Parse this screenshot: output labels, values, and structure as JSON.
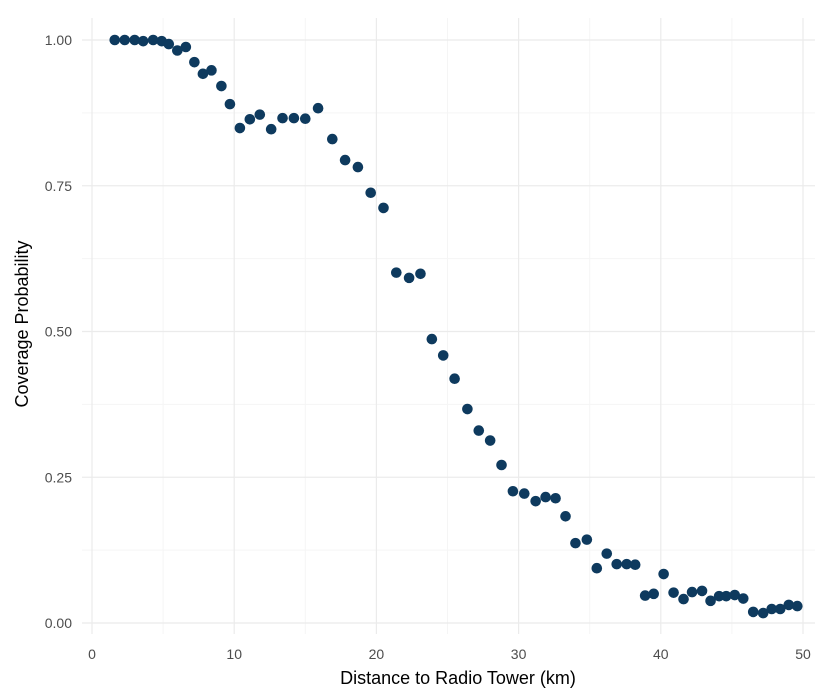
{
  "chart_data": {
    "type": "scatter",
    "title": "",
    "xlabel": "Distance to Radio Tower (km)",
    "ylabel": "Coverage Probability",
    "xlim": [
      0,
      50
    ],
    "ylim": [
      0,
      1
    ],
    "grid": true,
    "point_color": "#0e3a5e",
    "grid_major_color": "#ebebeb",
    "grid_minor_color": "#f5f5f5",
    "x_ticks": [
      0,
      10,
      20,
      30,
      40,
      50
    ],
    "x_tick_labels": [
      "0",
      "10",
      "20",
      "30",
      "40",
      "50"
    ],
    "y_ticks": [
      0,
      0.25,
      0.5,
      0.75,
      1
    ],
    "y_tick_labels": [
      "0.00",
      "0.25",
      "0.50",
      "0.75",
      "1.00"
    ],
    "series": [
      {
        "x": [
          1.6,
          2.3,
          3.0,
          3.6,
          4.3,
          4.9,
          5.4,
          6.0,
          6.6,
          7.2,
          7.8,
          8.4,
          9.1,
          9.7,
          10.4,
          11.1,
          11.8,
          12.6,
          13.4,
          14.2,
          15.0,
          15.9,
          16.9,
          17.8,
          18.7,
          19.6,
          20.5,
          21.4,
          22.3,
          23.1,
          23.9,
          24.7,
          25.5,
          26.4,
          27.2,
          28.0,
          28.8,
          29.6,
          30.4,
          31.2,
          31.9,
          32.6,
          33.3,
          34.0,
          34.8,
          35.5,
          36.2,
          36.9,
          37.6,
          38.2,
          38.9,
          39.5,
          40.2,
          40.9,
          41.6,
          42.2,
          42.9,
          43.5,
          44.1,
          44.6,
          45.2,
          45.8,
          46.5,
          47.2,
          47.8,
          48.4,
          49.0,
          49.6
        ],
        "y": [
          1.0,
          1.0,
          1.0,
          0.998,
          1.0,
          0.998,
          0.993,
          0.982,
          0.988,
          0.962,
          0.942,
          0.948,
          0.921,
          0.89,
          0.849,
          0.864,
          0.872,
          0.847,
          0.866,
          0.866,
          0.865,
          0.883,
          0.83,
          0.794,
          0.782,
          0.738,
          0.712,
          0.601,
          0.592,
          0.599,
          0.487,
          0.459,
          0.419,
          0.367,
          0.33,
          0.313,
          0.271,
          0.226,
          0.222,
          0.209,
          0.216,
          0.214,
          0.183,
          0.137,
          0.143,
          0.094,
          0.119,
          0.101,
          0.101,
          0.1,
          0.047,
          0.05,
          0.084,
          0.052,
          0.041,
          0.053,
          0.055,
          0.038,
          0.046,
          0.046,
          0.048,
          0.042,
          0.019,
          0.017,
          0.024,
          0.024,
          0.031,
          0.029
        ]
      }
    ]
  }
}
